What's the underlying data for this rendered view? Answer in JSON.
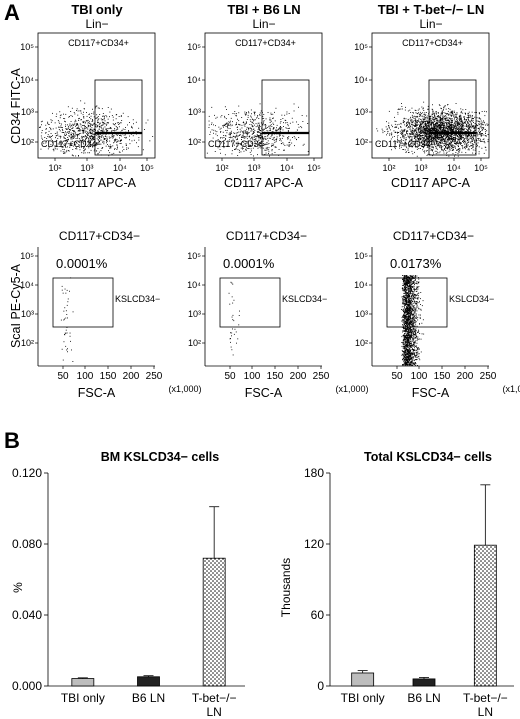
{
  "panel_a": {
    "letter": "A",
    "columns": [
      {
        "title": "TBI only",
        "subtitle": "Lin−",
        "top_gate_label": "CD117+CD34+",
        "low_label": "CD117+CD34−",
        "bottom_title": "CD117+CD34−",
        "percent": "0.0001%",
        "ksl_label": "KSLCD34−"
      },
      {
        "title": "TBI + B6 LN",
        "subtitle": "Lin−",
        "top_gate_label": "CD117+CD34+",
        "low_label": "CD117+CD34−",
        "bottom_title": "CD117+CD34−",
        "percent": "0.0001%",
        "ksl_label": "KSLCD34−"
      },
      {
        "title": "TBI + T-bet−/− LN",
        "subtitle": "Lin−",
        "top_gate_label": "CD117+CD34+",
        "low_label": "CD117+CD34−",
        "bottom_title": "CD117+CD34−",
        "percent": "0.0173%",
        "ksl_label": "KSLCD34−"
      }
    ],
    "top_row": {
      "ylabel": "CD34 FITC-A",
      "xlabel": "CD117 APC-A",
      "y_ticks": [
        "10⁵",
        "10⁴",
        "10³",
        "10²"
      ],
      "x_ticks": [
        "10²",
        "10³",
        "10⁴",
        "10⁵"
      ]
    },
    "bottom_row": {
      "ylabel": "ScaI PE-Cy5-A",
      "xlabel": "FSC-A",
      "x_unit": "(x1,000)",
      "y_ticks": [
        "10⁵",
        "10⁴",
        "10³",
        "10²"
      ],
      "x_ticks": [
        "50",
        "100",
        "150",
        "200",
        "250"
      ]
    }
  },
  "panel_b": {
    "letter": "B",
    "bar_colors": [
      "#bdbdbd",
      "#222222",
      "#ffffff"
    ],
    "chart_data": [
      {
        "type": "bar",
        "title": "BM KSLCD34− cells",
        "ylabel": "%",
        "categories": [
          "TBI only",
          "B6 LN",
          "T-bet−/− LN"
        ],
        "values": [
          0.0042,
          0.0052,
          0.072
        ],
        "errors": [
          0.0004,
          0.0006,
          0.029
        ],
        "ylim": [
          0,
          0.12
        ],
        "yticks": [
          0,
          0.04,
          0.08,
          0.12
        ],
        "ytick_labels": [
          "0.000",
          "0.040",
          "0.080",
          "0.120"
        ]
      },
      {
        "type": "bar",
        "title": "Total KSLCD34− cells",
        "ylabel": "Thousands",
        "categories": [
          "TBI only",
          "B6 LN",
          "T-bet−/− LN"
        ],
        "values": [
          11,
          6,
          119
        ],
        "errors": [
          2,
          1.2,
          51
        ],
        "ylim": [
          0,
          180
        ],
        "yticks": [
          0,
          60,
          120,
          180
        ],
        "ytick_labels": [
          "0",
          "60",
          "120",
          "180"
        ]
      }
    ]
  }
}
